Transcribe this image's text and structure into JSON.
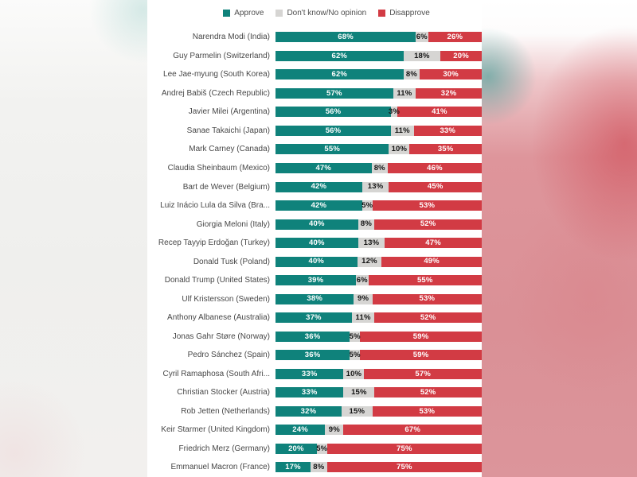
{
  "colors": {
    "approve": "#0f827b",
    "dont_know": "#d6d5d3",
    "disapprove": "#d23b44",
    "panel_background": "#ffffff",
    "label_text": "#474747"
  },
  "chart_data": {
    "type": "bar",
    "orientation": "horizontal",
    "stacked": true,
    "unit": "%",
    "axis_range": [
      0,
      100
    ],
    "grid": false,
    "legend_position": "top-center",
    "legend": [
      {
        "label": "Approve",
        "color": "#0f827b"
      },
      {
        "label": "Don't know/No opinion",
        "color": "#d6d5d3"
      },
      {
        "label": "Disapprove",
        "color": "#d23b44"
      }
    ],
    "categories": [
      "Narendra Modi (India)",
      "Guy Parmelin (Switzerland)",
      "Lee Jae-myung (South Korea)",
      "Andrej Babiš (Czech Republic)",
      "Javier Milei (Argentina)",
      "Sanae Takaichi (Japan)",
      "Mark Carney (Canada)",
      "Claudia Sheinbaum (Mexico)",
      "Bart de Wever (Belgium)",
      "Luiz Inácio Lula da Silva (Bra...",
      "Giorgia Meloni (Italy)",
      "Recep Tayyip Erdoğan (Turkey)",
      "Donald Tusk (Poland)",
      "Donald Trump (United States)",
      "Ulf Kristersson (Sweden)",
      "Anthony Albanese (Australia)",
      "Jonas Gahr Støre (Norway)",
      "Pedro Sánchez (Spain)",
      "Cyril Ramaphosa (South Afri...",
      "Christian Stocker (Austria)",
      "Rob Jetten (Netherlands)",
      "Keir Starmer (United Kingdom)",
      "Friedrich Merz (Germany)",
      "Emmanuel Macron (France)"
    ],
    "series": [
      {
        "name": "Approve",
        "color": "#0f827b",
        "values": [
          68,
          62,
          62,
          57,
          56,
          56,
          55,
          47,
          42,
          42,
          40,
          40,
          40,
          39,
          38,
          37,
          36,
          36,
          33,
          33,
          32,
          24,
          20,
          17
        ]
      },
      {
        "name": "Don't know/No opinion",
        "color": "#d6d5d3",
        "values": [
          6,
          18,
          8,
          11,
          3,
          11,
          10,
          8,
          13,
          5,
          8,
          13,
          12,
          6,
          9,
          11,
          5,
          5,
          10,
          15,
          15,
          9,
          5,
          8
        ]
      },
      {
        "name": "Disapprove",
        "color": "#d23b44",
        "values": [
          26,
          20,
          30,
          32,
          41,
          33,
          35,
          46,
          45,
          53,
          52,
          47,
          49,
          55,
          53,
          52,
          59,
          59,
          57,
          52,
          53,
          67,
          75,
          75
        ]
      }
    ],
    "rows": [
      {
        "label": "Narendra Modi (India)",
        "approve": 68,
        "dont_know": 6,
        "disapprove": 26
      },
      {
        "label": "Guy Parmelin (Switzerland)",
        "approve": 62,
        "dont_know": 18,
        "disapprove": 20
      },
      {
        "label": "Lee Jae-myung (South Korea)",
        "approve": 62,
        "dont_know": 8,
        "disapprove": 30
      },
      {
        "label": "Andrej Babiš (Czech Republic)",
        "approve": 57,
        "dont_know": 11,
        "disapprove": 32
      },
      {
        "label": "Javier Milei (Argentina)",
        "approve": 56,
        "dont_know": 3,
        "disapprove": 41
      },
      {
        "label": "Sanae Takaichi (Japan)",
        "approve": 56,
        "dont_know": 11,
        "disapprove": 33
      },
      {
        "label": "Mark Carney (Canada)",
        "approve": 55,
        "dont_know": 10,
        "disapprove": 35
      },
      {
        "label": "Claudia Sheinbaum (Mexico)",
        "approve": 47,
        "dont_know": 8,
        "disapprove": 46
      },
      {
        "label": "Bart de Wever (Belgium)",
        "approve": 42,
        "dont_know": 13,
        "disapprove": 45
      },
      {
        "label": "Luiz Inácio Lula da Silva (Bra...",
        "approve": 42,
        "dont_know": 5,
        "disapprove": 53
      },
      {
        "label": "Giorgia Meloni (Italy)",
        "approve": 40,
        "dont_know": 8,
        "disapprove": 52
      },
      {
        "label": "Recep Tayyip Erdoğan (Turkey)",
        "approve": 40,
        "dont_know": 13,
        "disapprove": 47
      },
      {
        "label": "Donald Tusk (Poland)",
        "approve": 40,
        "dont_know": 12,
        "disapprove": 49
      },
      {
        "label": "Donald Trump (United States)",
        "approve": 39,
        "dont_know": 6,
        "disapprove": 55
      },
      {
        "label": "Ulf Kristersson (Sweden)",
        "approve": 38,
        "dont_know": 9,
        "disapprove": 53
      },
      {
        "label": "Anthony Albanese (Australia)",
        "approve": 37,
        "dont_know": 11,
        "disapprove": 52
      },
      {
        "label": "Jonas Gahr Støre (Norway)",
        "approve": 36,
        "dont_know": 5,
        "disapprove": 59
      },
      {
        "label": "Pedro Sánchez (Spain)",
        "approve": 36,
        "dont_know": 5,
        "disapprove": 59
      },
      {
        "label": "Cyril Ramaphosa (South Afri...",
        "approve": 33,
        "dont_know": 10,
        "disapprove": 57
      },
      {
        "label": "Christian Stocker (Austria)",
        "approve": 33,
        "dont_know": 15,
        "disapprove": 52
      },
      {
        "label": "Rob Jetten (Netherlands)",
        "approve": 32,
        "dont_know": 15,
        "disapprove": 53
      },
      {
        "label": "Keir Starmer (United Kingdom)",
        "approve": 24,
        "dont_know": 9,
        "disapprove": 67
      },
      {
        "label": "Friedrich Merz (Germany)",
        "approve": 20,
        "dont_know": 5,
        "disapprove": 75
      },
      {
        "label": "Emmanuel Macron (France)",
        "approve": 17,
        "dont_know": 8,
        "disapprove": 75
      }
    ]
  }
}
